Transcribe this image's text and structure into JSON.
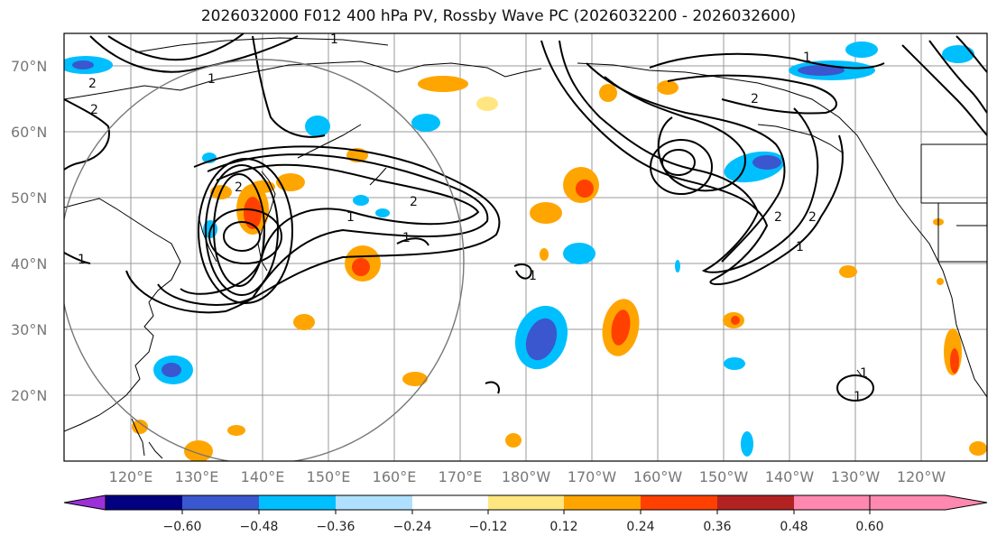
{
  "title": "2026032000 F012 400 hPa PV, Rossby Wave PC (2026032200 - 2026032600)",
  "lat_labels": [
    "70°N",
    "60°N",
    "50°N",
    "40°N",
    "30°N",
    "20°N"
  ],
  "lon_labels": [
    "120°E",
    "130°E",
    "140°E",
    "150°E",
    "160°E",
    "170°E",
    "180°W",
    "170°W",
    "160°W",
    "150°W",
    "140°W",
    "130°W",
    "120°W"
  ],
  "colorbar": {
    "ticks": [
      "−0.60",
      "−0.48",
      "−0.36",
      "−0.24",
      "−0.12",
      "0.12",
      "0.24",
      "0.36",
      "0.48",
      "0.60"
    ],
    "colors": [
      "#9b30d9",
      "#000080",
      "#3a57cf",
      "#00bfff",
      "#b0e0ff",
      "#ffffff",
      "#ffe680",
      "#ffa500",
      "#ff4000",
      "#b22222",
      "#ff88b0"
    ]
  },
  "contour_labels": [
    "1",
    "2",
    "1",
    "2",
    "1",
    "2",
    "1",
    "2",
    "1",
    "2",
    "1",
    "2",
    "1",
    "1",
    "2",
    "1",
    "1"
  ]
}
